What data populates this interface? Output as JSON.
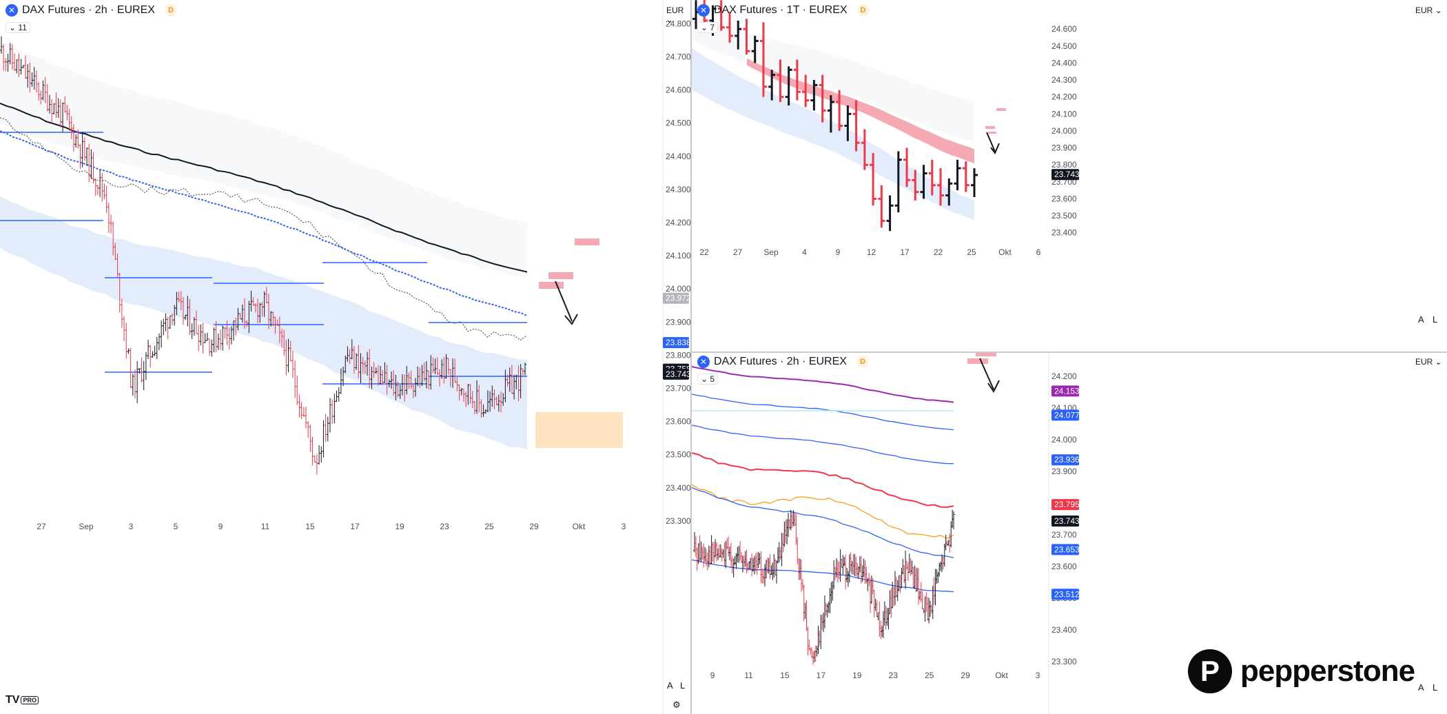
{
  "colors": {
    "up": "#131722",
    "down": "#f23645",
    "blue_line": "#2962ff",
    "band_fill": "#e3ecfb",
    "red_zone": "#f5a9b2",
    "orange_zone": "#fde3bf",
    "purple": "#9c27b0",
    "orange_line": "#ff9800",
    "teal": "#b2ebf2"
  },
  "icons": {
    "symbol": "exchange-icon",
    "delay": "delay-badge-icon",
    "settings": "gear-icon",
    "collapse": "chevron-down-icon"
  },
  "brand": {
    "tradingview": "TV",
    "tradingview_pro": "PRO",
    "pepperstone_mark": "P",
    "pepperstone": "pepperstone"
  },
  "panels": [
    {
      "id": "left",
      "title": "DAX Futures · 2h · EUREX",
      "delay_badge": "D",
      "currency": "EUR",
      "indicator_count": "11",
      "corner_a": "A",
      "corner_l": "L",
      "chart_data": {
        "type": "bar",
        "y_range": [
          23250,
          24830
        ],
        "y_ticks": [
          "24.800",
          "24.700",
          "24.600",
          "24.500",
          "24.400",
          "24.300",
          "24.200",
          "24.100",
          "24.000",
          "23.900",
          "23.800",
          "23.700",
          "23.600",
          "23.500",
          "23.400",
          "23.300"
        ],
        "x_labels": [
          "27",
          "Sep",
          "3",
          "5",
          "9",
          "11",
          "15",
          "17",
          "19",
          "23",
          "25",
          "29",
          "Okt",
          "3"
        ],
        "price_labels": [
          {
            "value": "23.972",
            "price": 23972,
            "color": "#b2b5be"
          },
          {
            "value": "23.838",
            "price": 23838,
            "color": "#2962ff"
          },
          {
            "value": "23.758",
            "price": 23758,
            "color": "#131722"
          },
          {
            "value": "23.743",
            "price": 23743,
            "color": "#131722"
          }
        ],
        "ohlc": []
      }
    },
    {
      "id": "top-right",
      "title": "DAX Futures · 1T · EUREX",
      "delay_badge": "D",
      "currency": "EUR",
      "indicator_count": "7",
      "corner_a": "A",
      "corner_l": "L",
      "chart_data": {
        "type": "bar",
        "y_range": [
          23350,
          24690
        ],
        "y_ticks": [
          "24.600",
          "24.500",
          "24.400",
          "24.300",
          "24.200",
          "24.100",
          "24.000",
          "23.900",
          "23.800",
          "23.700",
          "23.600",
          "23.500",
          "23.400"
        ],
        "x_labels": [
          "22",
          "27",
          "Sep",
          "4",
          "9",
          "12",
          "17",
          "22",
          "25",
          "Okt",
          "6"
        ],
        "price_labels": [
          {
            "value": "23.743",
            "price": 23743,
            "color": "#131722"
          }
        ],
        "ohlc": [
          [
            24660,
            24770,
            24600,
            24700
          ],
          [
            24700,
            24810,
            24620,
            24650
          ],
          [
            24650,
            24740,
            24560,
            24720
          ],
          [
            24720,
            24770,
            24590,
            24610
          ],
          [
            24610,
            24700,
            24520,
            24560
          ],
          [
            24560,
            24650,
            24480,
            24600
          ],
          [
            24600,
            24660,
            24450,
            24470
          ],
          [
            24470,
            24560,
            24400,
            24530
          ],
          [
            24530,
            24640,
            24200,
            24260
          ],
          [
            24260,
            24360,
            24180,
            24330
          ],
          [
            24330,
            24420,
            24170,
            24200
          ],
          [
            24200,
            24380,
            24150,
            24360
          ],
          [
            24360,
            24420,
            24180,
            24230
          ],
          [
            24230,
            24330,
            24140,
            24180
          ],
          [
            24180,
            24300,
            24120,
            24270
          ],
          [
            24270,
            24330,
            24050,
            24120
          ],
          [
            24120,
            24210,
            23990,
            24170
          ],
          [
            24170,
            24240,
            24000,
            24030
          ],
          [
            24030,
            24150,
            23940,
            24100
          ],
          [
            24100,
            24180,
            23880,
            23930
          ],
          [
            23930,
            24010,
            23770,
            23800
          ],
          [
            23800,
            23870,
            23560,
            23600
          ],
          [
            23600,
            23680,
            23430,
            23470
          ],
          [
            23470,
            23620,
            23410,
            23560
          ],
          [
            23560,
            23880,
            23520,
            23830
          ],
          [
            23830,
            23900,
            23670,
            23710
          ],
          [
            23710,
            23770,
            23590,
            23640
          ],
          [
            23640,
            23800,
            23600,
            23750
          ],
          [
            23750,
            23830,
            23620,
            23680
          ],
          [
            23680,
            23780,
            23560,
            23620
          ],
          [
            23620,
            23720,
            23560,
            23690
          ],
          [
            23690,
            23830,
            23650,
            23780
          ],
          [
            23780,
            23820,
            23640,
            23680
          ],
          [
            23680,
            23780,
            23610,
            23740
          ]
        ]
      }
    },
    {
      "id": "bottom-right",
      "title": "DAX Futures · 2h · EUREX",
      "delay_badge": "D",
      "currency": "EUR",
      "indicator_count": "5",
      "corner_a": "A",
      "corner_l": "L",
      "chart_data": {
        "type": "bar",
        "y_range": [
          23230,
          24230
        ],
        "y_ticks": [
          "24.200",
          "24.100",
          "24.000",
          "23.900",
          "23.800",
          "23.700",
          "23.600",
          "23.500",
          "23.400",
          "23.300"
        ],
        "x_labels": [
          "9",
          "11",
          "15",
          "17",
          "19",
          "23",
          "25",
          "29",
          "Okt",
          "3"
        ],
        "price_labels": [
          {
            "value": "24.153",
            "price": 24153,
            "color": "#9c27b0"
          },
          {
            "value": "24.077",
            "price": 24077,
            "color": "#2962ff"
          },
          {
            "value": "23.936",
            "price": 23936,
            "color": "#2962ff"
          },
          {
            "value": "23.795",
            "price": 23795,
            "color": "#f23645"
          },
          {
            "value": "23.743",
            "price": 23743,
            "color": "#131722"
          },
          {
            "value": "23.653",
            "price": 23653,
            "color": "#2962ff"
          },
          {
            "value": "23.512",
            "price": 23512,
            "color": "#2962ff"
          }
        ],
        "ohlc": []
      }
    }
  ]
}
